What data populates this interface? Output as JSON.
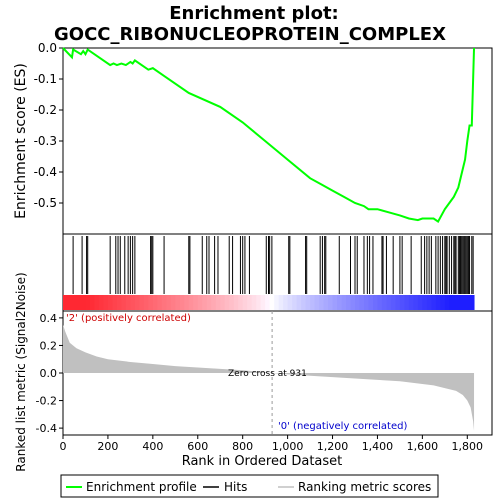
{
  "chart_data": {
    "type": "line",
    "title": "Enrichment plot:\nGOCC_RIBONUCLEOPROTEIN_COMPLEX",
    "title_lines": [
      "Enrichment plot:",
      "GOCC_RIBONUCLEOPROTEIN_COMPLEX"
    ],
    "xlabel": "Rank in Ordered Dataset",
    "xlim": [
      0,
      1910
    ],
    "x_ticks": [
      0,
      200,
      400,
      600,
      800,
      1000,
      1200,
      1400,
      1600,
      1800
    ],
    "x_tick_labels": [
      "0",
      "200",
      "400",
      "600",
      "800",
      "1,000",
      "1,200",
      "1,400",
      "1,600",
      "1,800"
    ],
    "es_panel": {
      "ylabel": "Enrichment score (ES)",
      "ylim": [
        -0.6,
        0.0
      ],
      "y_ticks": [
        0.0,
        -0.1,
        -0.2,
        -0.3,
        -0.4,
        -0.5
      ],
      "y_tick_labels": [
        "0.0",
        "-0.1",
        "-0.2",
        "-0.3",
        "-0.4",
        "-0.5"
      ],
      "line_color": "#00ff00",
      "series": [
        {
          "name": "Enrichment profile",
          "x": [
            0,
            40,
            45,
            80,
            90,
            100,
            110,
            210,
            225,
            240,
            260,
            280,
            300,
            310,
            320,
            380,
            400,
            450,
            560,
            700,
            800,
            900,
            1000,
            1100,
            1150,
            1200,
            1250,
            1300,
            1340,
            1360,
            1400,
            1450,
            1500,
            1540,
            1580,
            1600,
            1650,
            1670,
            1700,
            1720,
            1740,
            1760,
            1780,
            1790,
            1800,
            1810,
            1820,
            1826,
            1830
          ],
          "y": [
            0.0,
            -0.03,
            -0.005,
            -0.02,
            -0.01,
            -0.02,
            -0.005,
            -0.055,
            -0.05,
            -0.055,
            -0.05,
            -0.055,
            -0.045,
            -0.05,
            -0.04,
            -0.07,
            -0.065,
            -0.09,
            -0.145,
            -0.19,
            -0.24,
            -0.3,
            -0.36,
            -0.42,
            -0.44,
            -0.46,
            -0.48,
            -0.5,
            -0.51,
            -0.52,
            -0.52,
            -0.53,
            -0.54,
            -0.55,
            -0.555,
            -0.55,
            -0.55,
            -0.56,
            -0.52,
            -0.5,
            -0.48,
            -0.45,
            -0.39,
            -0.36,
            -0.3,
            -0.25,
            -0.25,
            -0.1,
            0.0
          ]
        }
      ]
    },
    "hits_panel": {
      "legend_name": "Hits",
      "positions": [
        45,
        85,
        105,
        110,
        210,
        235,
        245,
        255,
        275,
        290,
        300,
        310,
        320,
        390,
        395,
        400,
        450,
        560,
        565,
        620,
        640,
        650,
        675,
        690,
        740,
        755,
        790,
        800,
        810,
        830,
        905,
        915,
        920,
        930,
        1005,
        1010,
        1080,
        1085,
        1145,
        1155,
        1165,
        1170,
        1230,
        1280,
        1300,
        1310,
        1340,
        1355,
        1365,
        1380,
        1420,
        1425,
        1440,
        1470,
        1500,
        1510,
        1550,
        1595,
        1610,
        1620,
        1630,
        1640,
        1660,
        1670,
        1680,
        1690,
        1700,
        1705,
        1710,
        1720,
        1730,
        1740,
        1745,
        1750,
        1760,
        1765,
        1770,
        1775,
        1780,
        1785,
        1790,
        1795,
        1800,
        1805,
        1810,
        1820,
        1826
      ]
    },
    "rank_panel": {
      "ylabel": "Ranked list metric (Signal2Noise)",
      "legend_name": "Ranking metric scores",
      "ylim": [
        -0.45,
        0.45
      ],
      "y_ticks": [
        0.4,
        0.2,
        0.0,
        -0.2,
        -0.4
      ],
      "y_tick_labels": [
        "0.4",
        "0.2",
        "0.0",
        "-0.2",
        "-0.4"
      ],
      "fill_color": "#c0c0c0",
      "curve_x": [
        0,
        10,
        30,
        60,
        100,
        150,
        200,
        300,
        400,
        500,
        600,
        700,
        800,
        900,
        931,
        1000,
        1100,
        1200,
        1300,
        1400,
        1500,
        1600,
        1650,
        1700,
        1750,
        1780,
        1800,
        1815,
        1826,
        1830
      ],
      "curve_y": [
        0.35,
        0.3,
        0.22,
        0.18,
        0.15,
        0.12,
        0.1,
        0.08,
        0.065,
        0.05,
        0.04,
        0.03,
        0.02,
        0.005,
        0.0,
        -0.01,
        -0.02,
        -0.03,
        -0.04,
        -0.05,
        -0.06,
        -0.08,
        -0.09,
        -0.11,
        -0.13,
        -0.16,
        -0.2,
        -0.25,
        -0.35,
        -0.42
      ],
      "zero_cross_label": "Zero cross at 931",
      "zero_cross": 931,
      "pos_label": "'2' (positively correlated)",
      "neg_label": "'0' (negatively correlated)",
      "pos_color": "#ff0000",
      "neg_color": "#0000ff"
    },
    "legend": [
      {
        "name": "Enrichment profile",
        "color": "#00ff00"
      },
      {
        "name": "Hits",
        "color": "#000000"
      },
      {
        "name": "Ranking metric scores",
        "color": "#c0c0c0"
      }
    ]
  }
}
